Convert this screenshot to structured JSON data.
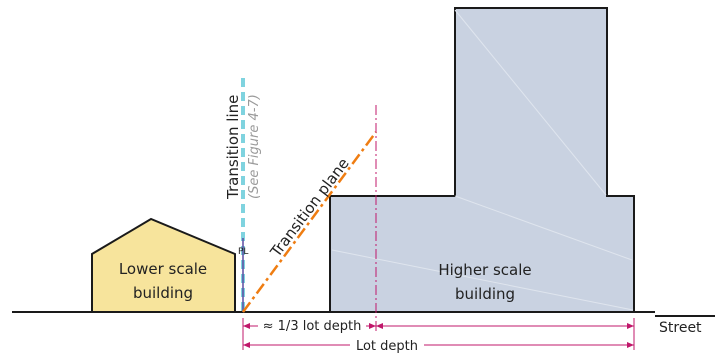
{
  "labels": {
    "transition_line": "Transition line",
    "see_figure": "(See Figure 4-7)",
    "transition_plane": "Transition plane",
    "pl": "PL",
    "lower_line1": "Lower scale",
    "lower_line2": "building",
    "higher_line1": "Higher scale",
    "higher_line2": "building",
    "street": "Street",
    "third_depth": "≈ 1/3 lot depth",
    "lot_depth": "Lot depth"
  },
  "colors": {
    "lower_building_fill": "#f7e49c",
    "higher_building_fill": "#c9d2e1",
    "outline": "#1a1a1a",
    "transition_line": "#7fd3df",
    "transition_plane": "#ef7d12",
    "dimension": "#c0186b"
  }
}
